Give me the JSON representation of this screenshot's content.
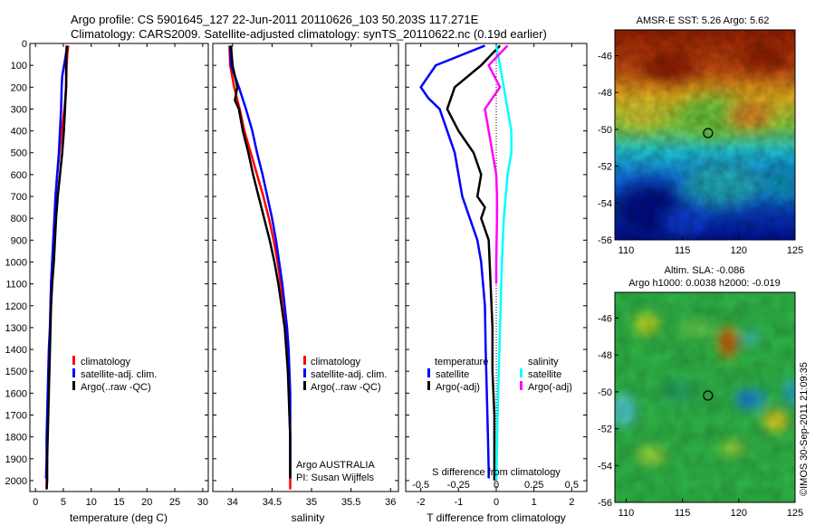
{
  "header": {
    "line1": "Argo profile: CS 5901645_127 22-Jun-2011 20110626_103 50.203S 117.271E",
    "line2": "Climatology: CARS2009. Satellite-adjusted climatology: synTS_20110622.nc (0.19d earlier)"
  },
  "colors": {
    "climatology": "#ff0000",
    "satellite": "#0000ff",
    "argo": "#000000",
    "satellite_salinity": "#00ffff",
    "argo_salinity": "#ff00ff"
  },
  "legend": {
    "climatology": "climatology",
    "satellite_adj": "satellite-adj. clim.",
    "argo_raw": "Argo(..raw -QC)",
    "temperature_head": "temperature",
    "salinity_head": "salinity",
    "satellite": "satellite",
    "argo_adj": "Argo(-adj)"
  },
  "annotations": {
    "argo_country": "Argo AUSTRALIA",
    "pi": "PI: Susan Wijffels",
    "s_diff_title": "S difference from climatology",
    "sst_title": "AMSR-E SST: 5.26 Argo: 5.62",
    "sla_title1": "Altim. SLA: -0.086",
    "sla_title2": "Argo h1000: 0.0038 h2000: -0.019",
    "imos_credit": "©IMOS 30-Sep-2011 21:09:35"
  },
  "chart_data": [
    {
      "type": "line",
      "name": "temperature-profile",
      "xlabel": "temperature (deg C)",
      "ylabel": "",
      "xlim": [
        -1,
        31
      ],
      "ylim": [
        2050,
        0
      ],
      "xticks": [
        "0",
        "5",
        "10",
        "15",
        "20",
        "25",
        "30"
      ],
      "yticks": [
        "0",
        "100",
        "200",
        "300",
        "400",
        "500",
        "600",
        "700",
        "800",
        "900",
        "1000",
        "1100",
        "1200",
        "1300",
        "1400",
        "1500",
        "1600",
        "1700",
        "1800",
        "1900",
        "2000"
      ],
      "series": [
        {
          "name": "climatology",
          "x": [
            5.9,
            5.7,
            5.6,
            5.5,
            5.2,
            4.7,
            4.3,
            3.9,
            3.6,
            3.4,
            3.2,
            3.0,
            2.8,
            2.7,
            2.6,
            2.5,
            2.4,
            2.3,
            2.2,
            2.1,
            2.1,
            2.0,
            2.0
          ],
          "y": [
            10,
            50,
            100,
            200,
            300,
            400,
            500,
            600,
            700,
            800,
            900,
            1000,
            1100,
            1200,
            1300,
            1400,
            1500,
            1600,
            1700,
            1800,
            1900,
            2000,
            2040
          ]
        },
        {
          "name": "satellite-adj. clim.",
          "x": [
            5.7,
            5.4,
            4.8,
            4.7,
            4.6,
            4.4,
            4.2,
            3.9,
            3.6,
            3.4,
            3.2,
            3.0,
            2.8,
            2.7,
            2.6,
            2.4,
            2.3,
            2.2,
            2.1,
            2.0,
            2.0,
            1.9
          ],
          "y": [
            10,
            60,
            150,
            200,
            300,
            400,
            500,
            600,
            700,
            800,
            900,
            1000,
            1100,
            1200,
            1300,
            1400,
            1500,
            1600,
            1700,
            1800,
            1900,
            1990
          ]
        },
        {
          "name": "Argo(..raw -QC)",
          "x": [
            5.6,
            5.5,
            5.5,
            5.3,
            5.1,
            4.8,
            4.4,
            4.0,
            3.7,
            3.5,
            3.3,
            3.0,
            2.8,
            2.7,
            2.6,
            2.5,
            2.4,
            2.3,
            2.2,
            2.1,
            2.1,
            2.0
          ],
          "y": [
            10,
            100,
            200,
            300,
            400,
            500,
            600,
            700,
            800,
            900,
            1000,
            1100,
            1200,
            1300,
            1400,
            1500,
            1600,
            1700,
            1800,
            1900,
            2000,
            2040
          ]
        }
      ]
    },
    {
      "type": "line",
      "name": "salinity-profile",
      "xlabel": "salinity",
      "ylabel": "",
      "xlim": [
        33.75,
        36.1
      ],
      "ylim": [
        2050,
        0
      ],
      "xticks": [
        "34",
        "34.5",
        "35",
        "35.5",
        "36"
      ],
      "series": [
        {
          "name": "climatology",
          "x": [
            33.96,
            33.97,
            34.02,
            34.09,
            34.15,
            34.23,
            34.31,
            34.39,
            34.46,
            34.52,
            34.57,
            34.61,
            34.65,
            34.68,
            34.7,
            34.71,
            34.72,
            34.72,
            34.73,
            34.73,
            34.73
          ],
          "y": [
            10,
            100,
            200,
            300,
            400,
            500,
            600,
            700,
            800,
            900,
            1000,
            1100,
            1200,
            1300,
            1400,
            1500,
            1600,
            1700,
            1800,
            1900,
            2040
          ]
        },
        {
          "name": "satellite-adj. clim.",
          "x": [
            33.97,
            33.98,
            34.08,
            34.17,
            34.25,
            34.31,
            34.38,
            34.44,
            34.5,
            34.55,
            34.59,
            34.63,
            34.66,
            34.69,
            34.71,
            34.72,
            34.73,
            34.73,
            34.73,
            34.73
          ],
          "y": [
            10,
            100,
            200,
            300,
            400,
            500,
            600,
            700,
            800,
            900,
            1000,
            1100,
            1200,
            1300,
            1400,
            1500,
            1600,
            1700,
            1800,
            1990
          ]
        },
        {
          "name": "Argo(..raw -QC)",
          "x": [
            33.98,
            34.0,
            34.06,
            34.03,
            34.08,
            34.13,
            34.2,
            34.26,
            34.33,
            34.4,
            34.47,
            34.53,
            34.58,
            34.62,
            34.66,
            34.68,
            34.7,
            34.71,
            34.72,
            34.73,
            34.73,
            34.73
          ],
          "y": [
            10,
            100,
            200,
            260,
            300,
            400,
            500,
            600,
            700,
            800,
            900,
            1000,
            1100,
            1200,
            1300,
            1400,
            1500,
            1600,
            1700,
            1800,
            1900,
            1990
          ]
        }
      ]
    },
    {
      "type": "line",
      "name": "difference-profile",
      "xlabel": "T difference from climatology",
      "ylabel": "",
      "xlim": [
        -2.4,
        2.4
      ],
      "ylim": [
        2050,
        0
      ],
      "xticks": [
        "-2",
        "-1",
        "0",
        "1",
        "2"
      ],
      "xticks_top": [
        "-0.5",
        "-0.25",
        "0",
        "0.25",
        "0.5"
      ],
      "series": [
        {
          "name": "temperature satellite",
          "x": [
            -0.3,
            -1.6,
            -2.0,
            -1.8,
            -1.5,
            -1.3,
            -1.1,
            -1.0,
            -0.9,
            -0.7,
            -0.5,
            -0.4,
            -0.35,
            -0.3,
            -0.28,
            -0.25,
            -0.22,
            -0.2,
            -0.2
          ],
          "y": [
            10,
            100,
            200,
            250,
            300,
            400,
            500,
            600,
            700,
            800,
            900,
            1000,
            1100,
            1200,
            1400,
            1600,
            1800,
            1950,
            1990
          ]
        },
        {
          "name": "temperature Argo(-adj)",
          "x": [
            0.1,
            -0.4,
            -1.1,
            -1.3,
            -1.0,
            -0.6,
            -0.4,
            -0.5,
            -0.3,
            -0.4,
            -0.2,
            -0.15,
            -0.1,
            -0.1,
            -0.05,
            -0.05,
            -0.05
          ],
          "y": [
            10,
            100,
            200,
            300,
            400,
            500,
            600,
            700,
            750,
            800,
            900,
            1100,
            1300,
            1500,
            1700,
            1900,
            2000
          ]
        },
        {
          "name": "salinity satellite",
          "x": [
            0.0,
            0.1,
            0.2,
            0.3,
            0.4,
            0.4,
            0.3,
            0.2,
            0.15,
            0.1,
            0.05,
            0.0
          ],
          "y": [
            10,
            100,
            200,
            300,
            400,
            500,
            600,
            800,
            1000,
            1300,
            1600,
            2000
          ]
        },
        {
          "name": "salinity Argo(-adj)",
          "x": [
            0.3,
            -0.2,
            0.1,
            -0.3,
            -0.2,
            -0.1,
            0.0,
            0.02,
            0.02,
            0.0,
            0.0
          ],
          "y": [
            10,
            100,
            200,
            300,
            400,
            500,
            600,
            700,
            800,
            1000,
            1100
          ]
        }
      ]
    },
    {
      "type": "heatmap",
      "name": "sst-map",
      "title": "AMSR-E SST: 5.26 Argo: 5.62",
      "xlim": [
        109,
        125
      ],
      "ylim": [
        -56,
        -44.6
      ],
      "xticks": [
        "110",
        "115",
        "120",
        "125"
      ],
      "yticks": [
        "-46",
        "-48",
        "-50",
        "-52",
        "-54",
        "-56"
      ],
      "marker": {
        "lon": 117.271,
        "lat": -50.203
      }
    },
    {
      "type": "heatmap",
      "name": "sla-map",
      "title": "Altim. SLA: -0.086",
      "xlim": [
        109,
        125
      ],
      "ylim": [
        -56,
        -44.6
      ],
      "xticks": [
        "110",
        "115",
        "120",
        "125"
      ],
      "yticks": [
        "-46",
        "-48",
        "-50",
        "-52",
        "-54",
        "-56"
      ],
      "marker": {
        "lon": 117.271,
        "lat": -50.203
      }
    }
  ]
}
